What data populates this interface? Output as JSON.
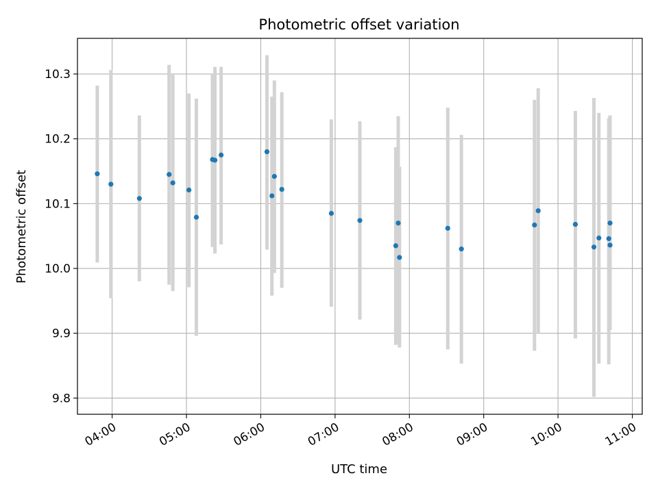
{
  "chart_data": {
    "type": "scatter",
    "title": "Photometric offset variation",
    "xlabel": "UTC time",
    "ylabel": "Photometric offset",
    "x_axis_type": "time",
    "xlim": [
      "03:32",
      "11:08"
    ],
    "ylim": [
      9.775,
      10.355
    ],
    "x_ticks": [
      "04:00",
      "05:00",
      "06:00",
      "07:00",
      "08:00",
      "09:00",
      "10:00",
      "11:00"
    ],
    "y_ticks": [
      9.8,
      9.9,
      10.0,
      10.1,
      10.2,
      10.3
    ],
    "y_tick_labels": [
      "9.8",
      "9.9",
      "10.0",
      "10.1",
      "10.2",
      "10.3"
    ],
    "grid": true,
    "marker_color": "#1f77b4",
    "errorbar_color": "#d3d3d3",
    "points": [
      {
        "x": "03:48",
        "y": 10.146,
        "ylow": 10.009,
        "yhigh": 10.282
      },
      {
        "x": "03:59",
        "y": 10.13,
        "ylow": 9.954,
        "yhigh": 10.306
      },
      {
        "x": "04:22",
        "y": 10.108,
        "ylow": 9.98,
        "yhigh": 10.236
      },
      {
        "x": "04:46",
        "y": 10.145,
        "ylow": 9.975,
        "yhigh": 10.314
      },
      {
        "x": "04:49",
        "y": 10.132,
        "ylow": 9.965,
        "yhigh": 10.3
      },
      {
        "x": "05:02",
        "y": 10.121,
        "ylow": 9.971,
        "yhigh": 10.27
      },
      {
        "x": "05:08",
        "y": 10.079,
        "ylow": 9.896,
        "yhigh": 10.262
      },
      {
        "x": "05:21",
        "y": 10.168,
        "ylow": 10.033,
        "yhigh": 10.3
      },
      {
        "x": "05:23",
        "y": 10.167,
        "ylow": 10.023,
        "yhigh": 10.311
      },
      {
        "x": "05:28",
        "y": 10.175,
        "ylow": 10.037,
        "yhigh": 10.311
      },
      {
        "x": "06:05",
        "y": 10.18,
        "ylow": 10.029,
        "yhigh": 10.329
      },
      {
        "x": "06:09",
        "y": 10.112,
        "ylow": 9.958,
        "yhigh": 10.265
      },
      {
        "x": "06:11",
        "y": 10.142,
        "ylow": 9.993,
        "yhigh": 10.29
      },
      {
        "x": "06:17",
        "y": 10.122,
        "ylow": 9.97,
        "yhigh": 10.272
      },
      {
        "x": "06:57",
        "y": 10.085,
        "ylow": 9.941,
        "yhigh": 10.23
      },
      {
        "x": "07:20",
        "y": 10.074,
        "ylow": 9.921,
        "yhigh": 10.227
      },
      {
        "x": "07:49",
        "y": 10.035,
        "ylow": 9.882,
        "yhigh": 10.187
      },
      {
        "x": "07:51",
        "y": 10.07,
        "ylow": 9.884,
        "yhigh": 10.235
      },
      {
        "x": "07:52",
        "y": 10.017,
        "ylow": 9.878,
        "yhigh": 10.157
      },
      {
        "x": "08:31",
        "y": 10.062,
        "ylow": 9.875,
        "yhigh": 10.248
      },
      {
        "x": "08:42",
        "y": 10.03,
        "ylow": 9.853,
        "yhigh": 10.206
      },
      {
        "x": "09:41",
        "y": 10.067,
        "ylow": 9.873,
        "yhigh": 10.26
      },
      {
        "x": "09:44",
        "y": 10.089,
        "ylow": 9.9,
        "yhigh": 10.278
      },
      {
        "x": "10:14",
        "y": 10.068,
        "ylow": 9.892,
        "yhigh": 10.243
      },
      {
        "x": "10:29",
        "y": 10.033,
        "ylow": 9.802,
        "yhigh": 10.263
      },
      {
        "x": "10:33",
        "y": 10.047,
        "ylow": 9.853,
        "yhigh": 10.24
      },
      {
        "x": "10:41",
        "y": 10.046,
        "ylow": 9.852,
        "yhigh": 10.232
      },
      {
        "x": "10:42",
        "y": 10.036,
        "ylow": 9.905,
        "yhigh": 10.236
      },
      {
        "x": "10:42",
        "y": 10.07,
        "ylow": 9.905,
        "yhigh": 10.236
      }
    ]
  }
}
